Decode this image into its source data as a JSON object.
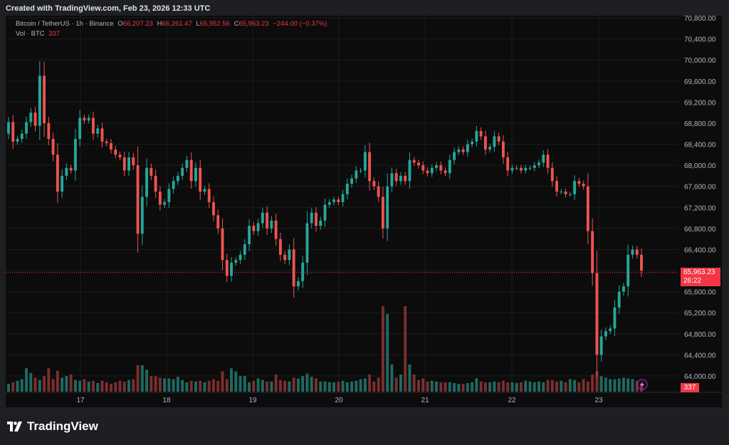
{
  "caption": "Created with TradingView.com, Feb 23, 2026 12:33 UTC",
  "legend": {
    "symbol": "Bitcoin / TetherUS · 1h · Binance",
    "o_label": "O",
    "o_value": "66,207.23",
    "h_label": "H",
    "h_value": "66,261.47",
    "l_label": "L",
    "l_value": "65,952.56",
    "c_label": "C",
    "c_value": "65,963.23",
    "change": "−244.00 (−0.37%)",
    "vol_label": "Vol · BTC",
    "vol_value": "337"
  },
  "price_tag": {
    "price": "65,963.23",
    "countdown": "26:22"
  },
  "volume_tag": "337",
  "brand": "TradingView",
  "colors": {
    "up": "#26a69a",
    "down": "#ef5350",
    "vol_up": "#1e6b63",
    "vol_down": "#7d2e2e",
    "background": "#0c0c0c",
    "last_price": "#f23645"
  },
  "chart_data": {
    "type": "candlestick",
    "symbol": "BTC/USDT",
    "interval": "1h",
    "yaxis": {
      "ticks": [
        "70,800.00",
        "70,400.00",
        "70,000.00",
        "69,600.00",
        "69,200.00",
        "68,800.00",
        "68,400.00",
        "68,000.00",
        "67,600.00",
        "67,200.00",
        "66,800.00",
        "66,400.00",
        "66,000.00",
        "65,600.00",
        "65,200.00",
        "64,800.00",
        "64,400.00",
        "64,000.00"
      ],
      "range": [
        63800,
        70900
      ]
    },
    "xaxis": {
      "ticks": [
        "17",
        "18",
        "19",
        "20",
        "21",
        "22",
        "23"
      ]
    },
    "last_price": 65963.23,
    "close": [
      68820,
      68450,
      68500,
      68600,
      68820,
      69000,
      68750,
      69700,
      68800,
      68500,
      68200,
      67500,
      67800,
      67950,
      67900,
      68500,
      68900,
      68850,
      68900,
      68600,
      68700,
      68450,
      68420,
      68300,
      68200,
      68150,
      67900,
      68150,
      68000,
      66700,
      67400,
      67950,
      67800,
      67500,
      67250,
      67300,
      67550,
      67700,
      67800,
      67950,
      68100,
      67700,
      67950,
      67500,
      67550,
      67300,
      67050,
      66800,
      66200,
      65900,
      66150,
      66200,
      66300,
      66500,
      66850,
      66750,
      66900,
      67100,
      66800,
      66950,
      66600,
      66300,
      66200,
      66400,
      65700,
      65800,
      66150,
      66900,
      67100,
      66850,
      66950,
      67250,
      67300,
      67350,
      67300,
      67450,
      67650,
      67750,
      67900,
      67900,
      68250,
      67700,
      67600,
      67400,
      66800,
      67600,
      67850,
      67700,
      67800,
      67700,
      68100,
      68050,
      68000,
      67900,
      67850,
      67950,
      68000,
      67900,
      67850,
      68100,
      68250,
      68300,
      68250,
      68400,
      68450,
      68650,
      68550,
      68300,
      68350,
      68550,
      68450,
      68150,
      67900,
      67950,
      67950,
      67900,
      67950,
      67950,
      68000,
      68050,
      68200,
      67950,
      67700,
      67500,
      67500,
      67450,
      67450,
      67700,
      67650,
      67600,
      66750,
      65950,
      64400,
      64750,
      64850,
      64900,
      65300,
      65600,
      65700,
      66300,
      66400,
      66300,
      66000
    ],
    "volume": [
      10,
      12,
      14,
      16,
      30,
      24,
      18,
      15,
      20,
      30,
      16,
      27,
      18,
      20,
      22,
      15,
      14,
      16,
      13,
      14,
      11,
      14,
      12,
      10,
      12,
      14,
      13,
      15,
      16,
      34,
      34,
      28,
      20,
      20,
      18,
      17,
      17,
      16,
      19,
      15,
      12,
      14,
      13,
      14,
      12,
      14,
      16,
      14,
      26,
      16,
      30,
      26,
      20,
      20,
      12,
      14,
      17,
      15,
      13,
      13,
      22,
      15,
      14,
      13,
      18,
      17,
      20,
      23,
      19,
      17,
      13,
      13,
      12,
      12,
      13,
      14,
      12,
      13,
      14,
      16,
      17,
      22,
      13,
      18,
      110,
      100,
      35,
      18,
      22,
      110,
      35,
      22,
      15,
      17,
      13,
      14,
      13,
      12,
      12,
      12,
      11,
      10,
      10,
      11,
      12,
      17,
      13,
      12,
      12,
      13,
      12,
      14,
      12,
      12,
      11,
      12,
      14,
      13,
      12,
      13,
      12,
      15,
      15,
      13,
      14,
      12,
      16,
      15,
      12,
      16,
      13,
      22,
      26,
      20,
      18,
      16,
      16,
      17,
      18,
      17,
      16,
      14,
      10
    ]
  }
}
